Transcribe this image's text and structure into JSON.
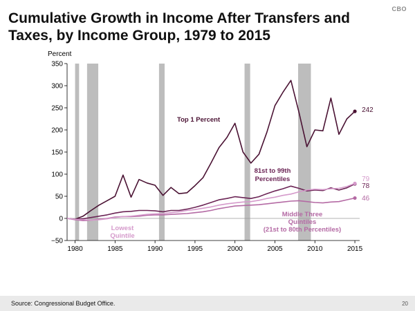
{
  "header": {
    "agency": "CBO",
    "title": "Cumulative Growth in Income After Transfers and Taxes, by Income Group, 1979 to 2015"
  },
  "footer": {
    "source": "Source: Congressional Budget Office.",
    "page": "20"
  },
  "colors": {
    "top1": "#4a1233",
    "p81_99": "#6b2455",
    "middle": "#b46aa4",
    "lowest": "#d59acb",
    "recession": "#bdbdbd",
    "axis": "#000000",
    "zero_line": "#9a9a9a"
  },
  "chart_data": {
    "type": "line",
    "title": "Cumulative Growth in Income After Transfers and Taxes, by Income Group, 1979 to 2015",
    "ylabel": "Percent",
    "xlabel": "",
    "xlim": [
      1979,
      2015.6
    ],
    "ylim": [
      -50,
      350
    ],
    "yticks": [
      -50,
      0,
      50,
      100,
      150,
      200,
      250,
      300,
      350
    ],
    "xticks": [
      1980,
      1985,
      1990,
      1995,
      2000,
      2005,
      2010,
      2015
    ],
    "recessions": [
      [
        1980,
        1980.5
      ],
      [
        1981.5,
        1982.9
      ],
      [
        1990.5,
        1991.2
      ],
      [
        2001.2,
        2001.9
      ],
      [
        2007.9,
        2009.5
      ]
    ],
    "x": [
      1979,
      1980,
      1981,
      1982,
      1983,
      1984,
      1985,
      1986,
      1987,
      1988,
      1989,
      1990,
      1991,
      1992,
      1993,
      1994,
      1995,
      1996,
      1997,
      1998,
      1999,
      2000,
      2001,
      2002,
      2003,
      2004,
      2005,
      2006,
      2007,
      2008,
      2009,
      2010,
      2011,
      2012,
      2013,
      2014,
      2015
    ],
    "series": [
      {
        "name": "Top 1 Percent",
        "label": "Top 1 Percent",
        "end_label": "242",
        "color_key": "top1",
        "values": [
          0,
          -2,
          5,
          18,
          30,
          40,
          50,
          98,
          48,
          88,
          80,
          75,
          52,
          70,
          56,
          58,
          74,
          92,
          125,
          160,
          183,
          215,
          150,
          125,
          145,
          195,
          255,
          285,
          312,
          240,
          162,
          200,
          198,
          272,
          190,
          225,
          242
        ]
      },
      {
        "name": "81st to 99th Percentiles",
        "label": "81st to 99th\nPercentiles",
        "end_label": "78",
        "color_key": "p81_99",
        "values": [
          0,
          -2,
          -1,
          2,
          5,
          8,
          12,
          15,
          16,
          18,
          18,
          17,
          15,
          18,
          18,
          21,
          25,
          30,
          36,
          42,
          45,
          49,
          47,
          45,
          49,
          56,
          62,
          67,
          73,
          68,
          62,
          64,
          63,
          69,
          64,
          69,
          78
        ]
      },
      {
        "name": "Middle Three Quintiles (21st to 80th Percentiles)",
        "label": "Middle Three\nQuintiles\n(21st to 80th Percentiles)",
        "end_label": "46",
        "color_key": "middle",
        "values": [
          0,
          -3,
          -5,
          -4,
          -2,
          0,
          3,
          4,
          4,
          5,
          7,
          8,
          8,
          9,
          10,
          11,
          13,
          15,
          18,
          22,
          25,
          28,
          29,
          30,
          31,
          33,
          35,
          37,
          39,
          40,
          38,
          36,
          35,
          37,
          38,
          42,
          46
        ]
      },
      {
        "name": "Lowest Quintile",
        "label": "Lowest\nQuintile",
        "end_label": "79",
        "color_key": "lowest",
        "values": [
          0,
          -2,
          -3,
          -4,
          -3,
          -1,
          2,
          4,
          5,
          7,
          9,
          10,
          11,
          13,
          15,
          18,
          20,
          23,
          26,
          30,
          33,
          35,
          37,
          38,
          41,
          45,
          48,
          52,
          55,
          60,
          64,
          66,
          65,
          67,
          68,
          72,
          79
        ]
      }
    ]
  }
}
